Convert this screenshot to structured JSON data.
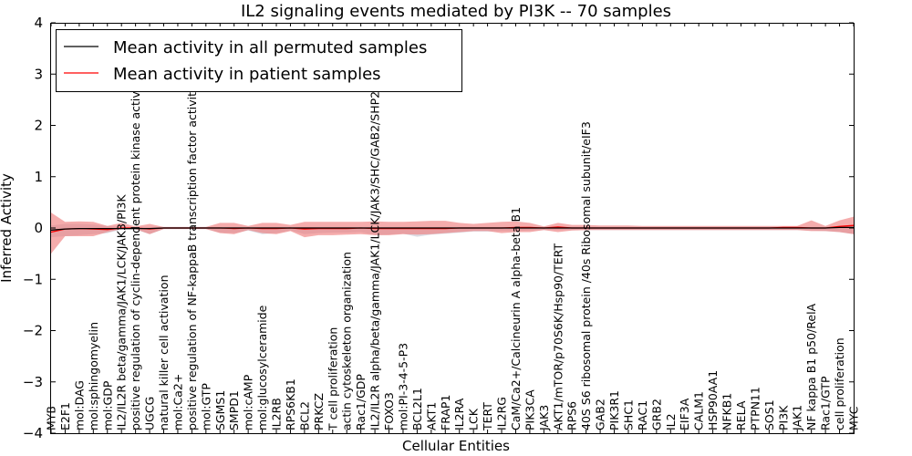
{
  "chart_data": {
    "type": "line",
    "title": "IL2 signaling events mediated by PI3K -- 70 samples",
    "xlabel": "Cellular Entities",
    "ylabel": "Inferred Activity",
    "ylim": [
      -4,
      4
    ],
    "yticks": [
      -4,
      -3,
      -2,
      -1,
      0,
      1,
      2,
      3,
      4
    ],
    "ytick_labels": [
      "−4",
      "−3",
      "−2",
      "−1",
      "0",
      "1",
      "2",
      "3",
      "4"
    ],
    "legend": {
      "location": "top-left",
      "entries": [
        {
          "label": "Mean activity in all permuted samples",
          "color": "#000000"
        },
        {
          "label": "Mean activity in patient samples",
          "color": "#ff0000"
        }
      ]
    },
    "categories": [
      "MYB",
      "E2F1",
      "mol:DAG",
      "mol:sphingomyelin",
      "mol:GDP",
      "IL2/IL2R beta/gamma/JAK1/LCK/JAK3/PI3K",
      "positive regulation of cyclin-dependent protein kinase activity",
      "UGCG",
      "natural killer cell activation",
      "mol:Ca2+",
      "positive regulation of NF-kappaB transcription factor activity",
      "mol:GTP",
      "SGMS1",
      "SMPD1",
      "mol:cAMP",
      "mol:glucosylceramide",
      "IL2RB",
      "RPS6KB1",
      "BCL2",
      "PRKCZ",
      "T cell proliferation",
      "actin cytoskeleton organization",
      "Rac1/GDP",
      "IL2/IL2R alpha/beta/gamma/JAK1/LCK/JAK3/SHC/GAB2/SHP2/PI3K",
      "FOXO3",
      "mol:PI-3-4-5-P3",
      "BCL2L1",
      "AKT1",
      "FRAP1",
      "IL2RA",
      "LCK",
      "TERT",
      "IL2RG",
      "CaM/Ca2+/Calcineurin A alpha-beta B1",
      "PIK3CA",
      "JAK3",
      "AKT1/mTOR/p70S6K/Hsp90/TERT",
      "RPS6",
      "40S S6 ribosomal protein /40s Ribosomal subunit/eIF3",
      "GAB2",
      "PIK3R1",
      "SHC1",
      "RAC1",
      "GRB2",
      "IL2",
      "EIF3A",
      "CALM1",
      "HSP90AA1",
      "NFKB1",
      "RELA",
      "PTPN11",
      "SOS1",
      "PI3K",
      "JAK1",
      "NF kappa B1 p50/RelA",
      "Rac1/GTP",
      "cell proliferation",
      "MYC"
    ],
    "series": [
      {
        "name": "Mean activity in all permuted samples",
        "color": "#000000",
        "values": [
          -0.04,
          -0.02,
          -0.01,
          -0.01,
          -0.01,
          -0.01,
          -0.01,
          -0.01,
          0.0,
          0.0,
          0.0,
          0.0,
          0.0,
          0.0,
          0.0,
          0.0,
          0.0,
          0.0,
          0.0,
          0.0,
          0.0,
          0.0,
          0.0,
          0.0,
          0.0,
          0.0,
          0.0,
          0.0,
          0.0,
          0.0,
          0.0,
          0.0,
          0.0,
          0.0,
          0.0,
          0.0,
          0.0,
          0.0,
          0.0,
          0.0,
          0.0,
          0.0,
          0.0,
          0.0,
          0.0,
          0.0,
          0.0,
          0.0,
          0.0,
          0.0,
          0.0,
          0.0,
          0.0,
          0.0,
          0.0,
          0.0,
          0.01,
          0.01
        ],
        "band_upper": [
          0.05,
          0.08,
          0.08,
          0.07,
          0.04,
          0.02,
          0.02,
          0.02,
          0.02,
          0.02,
          0.02,
          0.02,
          0.02,
          0.02,
          0.02,
          0.02,
          0.02,
          0.02,
          0.02,
          0.02,
          0.02,
          0.02,
          0.02,
          0.02,
          0.02,
          0.02,
          0.02,
          0.02,
          0.02,
          0.02,
          0.02,
          0.02,
          0.02,
          0.02,
          0.02,
          0.02,
          0.02,
          0.02,
          0.02,
          0.02,
          0.02,
          0.02,
          0.02,
          0.02,
          0.02,
          0.02,
          0.02,
          0.02,
          0.02,
          0.02,
          0.02,
          0.02,
          0.02,
          0.02,
          0.02,
          0.02,
          0.03,
          0.04
        ],
        "band_lower": [
          -0.18,
          -0.16,
          -0.14,
          -0.12,
          -0.1,
          -0.03,
          -0.03,
          -0.12,
          -0.02,
          -0.02,
          -0.02,
          -0.02,
          -0.09,
          -0.1,
          -0.05,
          -0.12,
          -0.1,
          -0.05,
          -0.12,
          -0.1,
          -0.09,
          -0.09,
          -0.08,
          -0.14,
          -0.13,
          -0.11,
          -0.17,
          -0.13,
          -0.11,
          -0.09,
          -0.07,
          -0.07,
          -0.06,
          -0.06,
          -0.05,
          -0.04,
          -0.04,
          -0.04,
          -0.04,
          -0.04,
          -0.04,
          -0.04,
          -0.04,
          -0.04,
          -0.04,
          -0.04,
          -0.04,
          -0.04,
          -0.04,
          -0.04,
          -0.04,
          -0.04,
          -0.04,
          -0.04,
          -0.05,
          -0.06,
          -0.08,
          -0.12
        ]
      },
      {
        "name": "Mean activity in patient samples",
        "color": "#ff0000",
        "values": [
          -0.08,
          -0.02,
          -0.01,
          -0.02,
          -0.03,
          0.0,
          0.0,
          -0.02,
          0.0,
          0.0,
          0.0,
          0.0,
          0.0,
          -0.01,
          0.0,
          -0.01,
          -0.01,
          0.0,
          -0.02,
          -0.01,
          -0.01,
          -0.01,
          0.0,
          -0.01,
          -0.01,
          -0.01,
          -0.01,
          -0.01,
          -0.01,
          0.0,
          0.0,
          0.0,
          0.0,
          0.01,
          0.01,
          0.0,
          0.02,
          0.0,
          0.0,
          0.0,
          0.0,
          0.0,
          0.0,
          0.0,
          0.0,
          0.0,
          0.0,
          0.0,
          0.0,
          0.0,
          0.0,
          0.0,
          0.01,
          0.01,
          0.0,
          0.0,
          0.03,
          0.05
        ],
        "band_upper": [
          0.3,
          0.12,
          0.13,
          0.12,
          0.04,
          0.1,
          0.03,
          0.08,
          0.02,
          0.02,
          0.02,
          0.02,
          0.1,
          0.1,
          0.04,
          0.1,
          0.1,
          0.06,
          0.12,
          0.12,
          0.12,
          0.12,
          0.12,
          0.13,
          0.12,
          0.12,
          0.13,
          0.14,
          0.14,
          0.1,
          0.08,
          0.1,
          0.12,
          0.13,
          0.1,
          0.03,
          0.1,
          0.06,
          0.06,
          0.05,
          0.05,
          0.05,
          0.04,
          0.04,
          0.04,
          0.04,
          0.04,
          0.04,
          0.04,
          0.04,
          0.04,
          0.04,
          0.04,
          0.04,
          0.15,
          0.04,
          0.15,
          0.22
        ],
        "band_lower": [
          -0.5,
          -0.16,
          -0.16,
          -0.16,
          -0.08,
          -0.02,
          -0.02,
          -0.12,
          -0.02,
          -0.02,
          -0.02,
          -0.02,
          -0.1,
          -0.12,
          -0.04,
          -0.1,
          -0.12,
          -0.06,
          -0.18,
          -0.14,
          -0.14,
          -0.13,
          -0.12,
          -0.14,
          -0.14,
          -0.12,
          -0.13,
          -0.12,
          -0.1,
          -0.08,
          -0.06,
          -0.06,
          -0.1,
          -0.08,
          -0.08,
          -0.04,
          -0.08,
          -0.05,
          -0.04,
          -0.04,
          -0.04,
          -0.04,
          -0.04,
          -0.04,
          -0.04,
          -0.04,
          -0.04,
          -0.04,
          -0.04,
          -0.04,
          -0.04,
          -0.04,
          -0.04,
          -0.04,
          -0.06,
          -0.06,
          -0.08,
          -0.12
        ]
      }
    ]
  }
}
